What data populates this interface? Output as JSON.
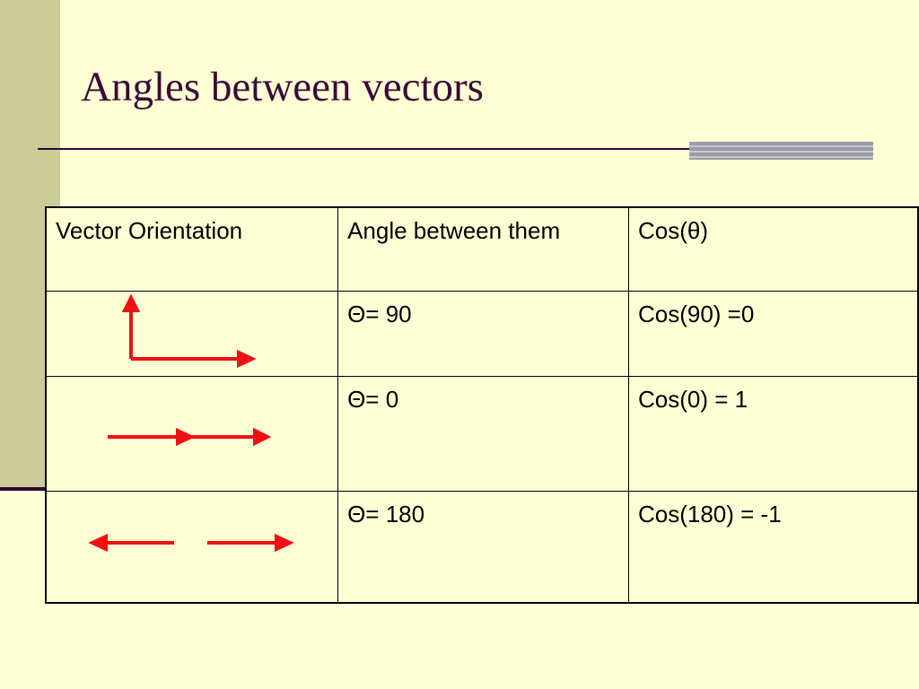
{
  "title": "Angles between vectors",
  "table": {
    "header": [
      "Vector Orientation",
      "Angle between them",
      "Cos(θ)"
    ],
    "rows": [
      {
        "angle": "Θ= 90",
        "cos": "Cos(90) =0"
      },
      {
        "angle": "Θ= 0",
        "cos": "Cos(0) = 1"
      },
      {
        "angle": "Θ= 180",
        "cos": "Cos(180) = -1"
      }
    ]
  }
}
